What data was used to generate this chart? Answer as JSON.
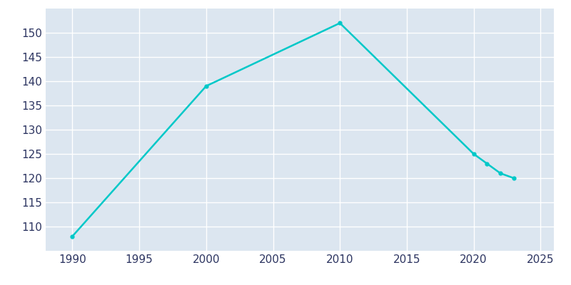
{
  "years": [
    1990,
    2000,
    2010,
    2020,
    2021,
    2022,
    2023
  ],
  "population": [
    108,
    139,
    152,
    125,
    123,
    121,
    120
  ],
  "line_color": "#00C8C8",
  "marker": "o",
  "marker_size": 3.5,
  "plot_bg_color": "#dce6f0",
  "fig_bg_color": "#ffffff",
  "grid_color": "#ffffff",
  "xlim": [
    1988,
    2026
  ],
  "ylim": [
    105,
    155
  ],
  "yticks": [
    110,
    115,
    120,
    125,
    130,
    135,
    140,
    145,
    150
  ],
  "xticks": [
    1990,
    1995,
    2000,
    2005,
    2010,
    2015,
    2020,
    2025
  ],
  "tick_label_color": "#2d3561",
  "tick_fontsize": 11,
  "line_width": 1.8
}
